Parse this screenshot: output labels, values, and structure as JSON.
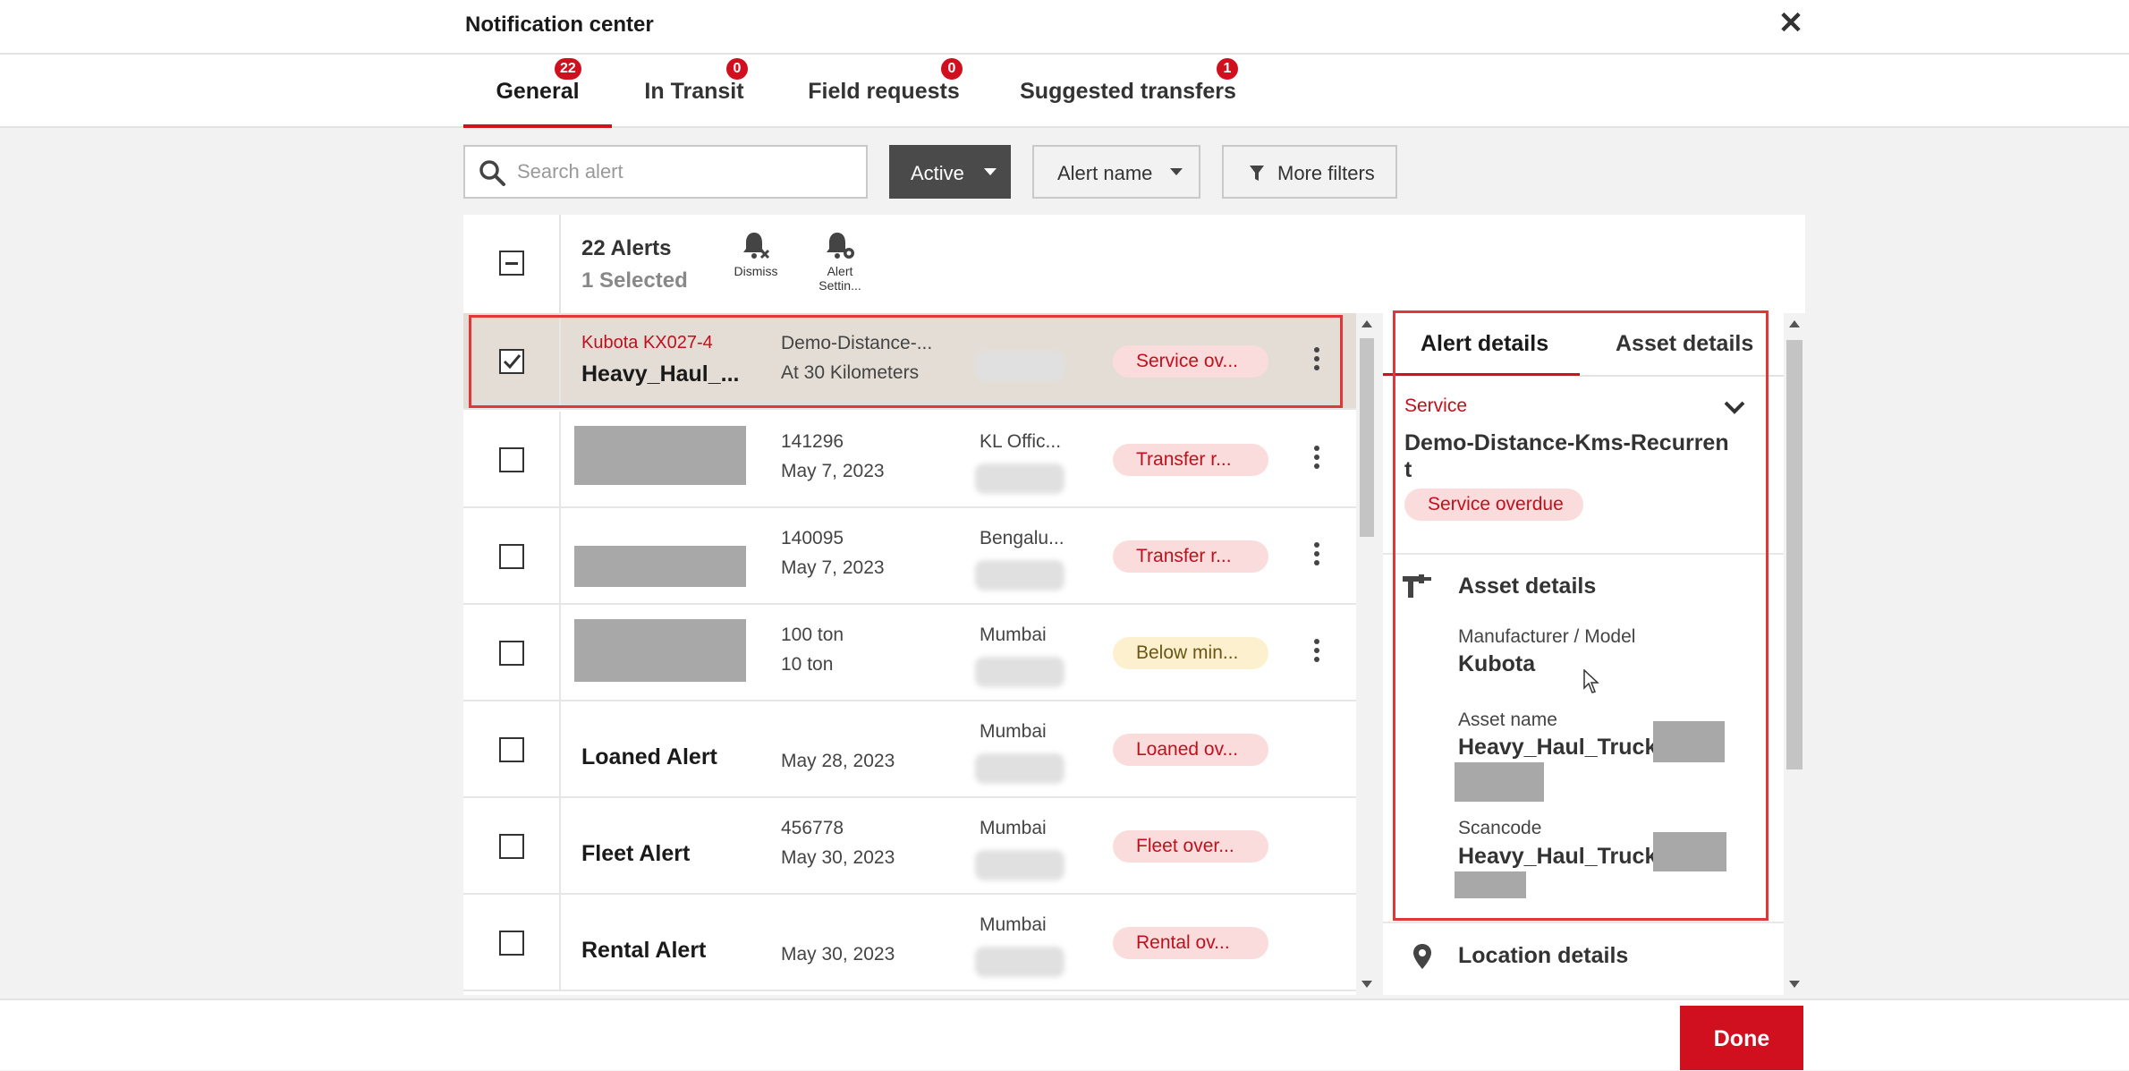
{
  "header": {
    "title": "Notification center",
    "close_icon": "close-icon"
  },
  "tabs": [
    {
      "label": "General",
      "count": "22",
      "active": true
    },
    {
      "label": "In Transit",
      "count": "0"
    },
    {
      "label": "Field requests",
      "count": "0"
    },
    {
      "label": "Suggested transfers",
      "count": "1"
    }
  ],
  "filters": {
    "search_placeholder": "Search alert",
    "status": "Active",
    "alert_name": "Alert name",
    "more_filters": "More filters"
  },
  "list_header": {
    "count": "22 Alerts",
    "selected": "1 Selected",
    "actions": [
      {
        "label": "Dismiss",
        "icon": "bell-dismiss-icon"
      },
      {
        "label": "Alert\nSettin...",
        "icon": "bell-settings-icon"
      }
    ]
  },
  "rows": [
    {
      "selected": true,
      "checked": true,
      "asset_mfr": "Kubota KX027-4",
      "asset_name": "Heavy_Haul_...",
      "col2_line1": "Demo-Distance-...",
      "col2_line2": "At 30 Kilometers",
      "location": "",
      "status": "Service ov...",
      "status_color": "red",
      "menu": true
    },
    {
      "asset_mfr": "",
      "asset_name": "",
      "col2_line1": "141296",
      "col2_line2": "May 7, 2023",
      "location": "KL Offic...",
      "status": "Transfer r...",
      "status_color": "red",
      "menu": true
    },
    {
      "asset_mfr": "",
      "asset_name": "",
      "col2_line1": "140095",
      "col2_line2": "May 7, 2023",
      "location": "Bengalu...",
      "status": "Transfer r...",
      "status_color": "red",
      "menu": true
    },
    {
      "asset_mfr": "",
      "asset_name": "",
      "col2_line1": "100 ton",
      "col2_line2": "10 ton",
      "location": "Mumbai",
      "status": "Below min...",
      "status_color": "yellow",
      "menu": true
    },
    {
      "asset_mfr": "",
      "asset_name": "Loaned Alert",
      "col2_line1": "",
      "col2_line2": "May 28, 2023",
      "location": "Mumbai",
      "status": "Loaned ov...",
      "status_color": "red",
      "menu": false
    },
    {
      "asset_mfr": "",
      "asset_name": "Fleet Alert",
      "col2_line1": "456778",
      "col2_line2": "May 30, 2023",
      "location": "Mumbai",
      "status": "Fleet over...",
      "status_color": "red",
      "menu": false
    },
    {
      "asset_mfr": "",
      "asset_name": "Rental Alert",
      "col2_line1": "",
      "col2_line2": "May 30, 2023",
      "location": "Mumbai",
      "status": "Rental ov...",
      "status_color": "red",
      "menu": false
    }
  ],
  "detail": {
    "tabs": [
      "Alert details",
      "Asset details"
    ],
    "service_type": "Service",
    "service_name": "Demo-Distance-Kms-Recurrent",
    "service_status": "Service overdue",
    "asset_section": "Asset details",
    "fields": [
      {
        "label": "Manufacturer / Model",
        "value": "Kubota"
      },
      {
        "label": "Asset name",
        "value": "Heavy_Haul_Truck"
      },
      {
        "label": "Scancode",
        "value": "Heavy_Haul_Truck"
      }
    ],
    "location_section": "Location details"
  },
  "footer": {
    "done": "Done"
  },
  "colors": {
    "accent": "#d0101f",
    "overdue_bg": "#fbdcdc",
    "warning_bg": "#fcf0cf"
  }
}
